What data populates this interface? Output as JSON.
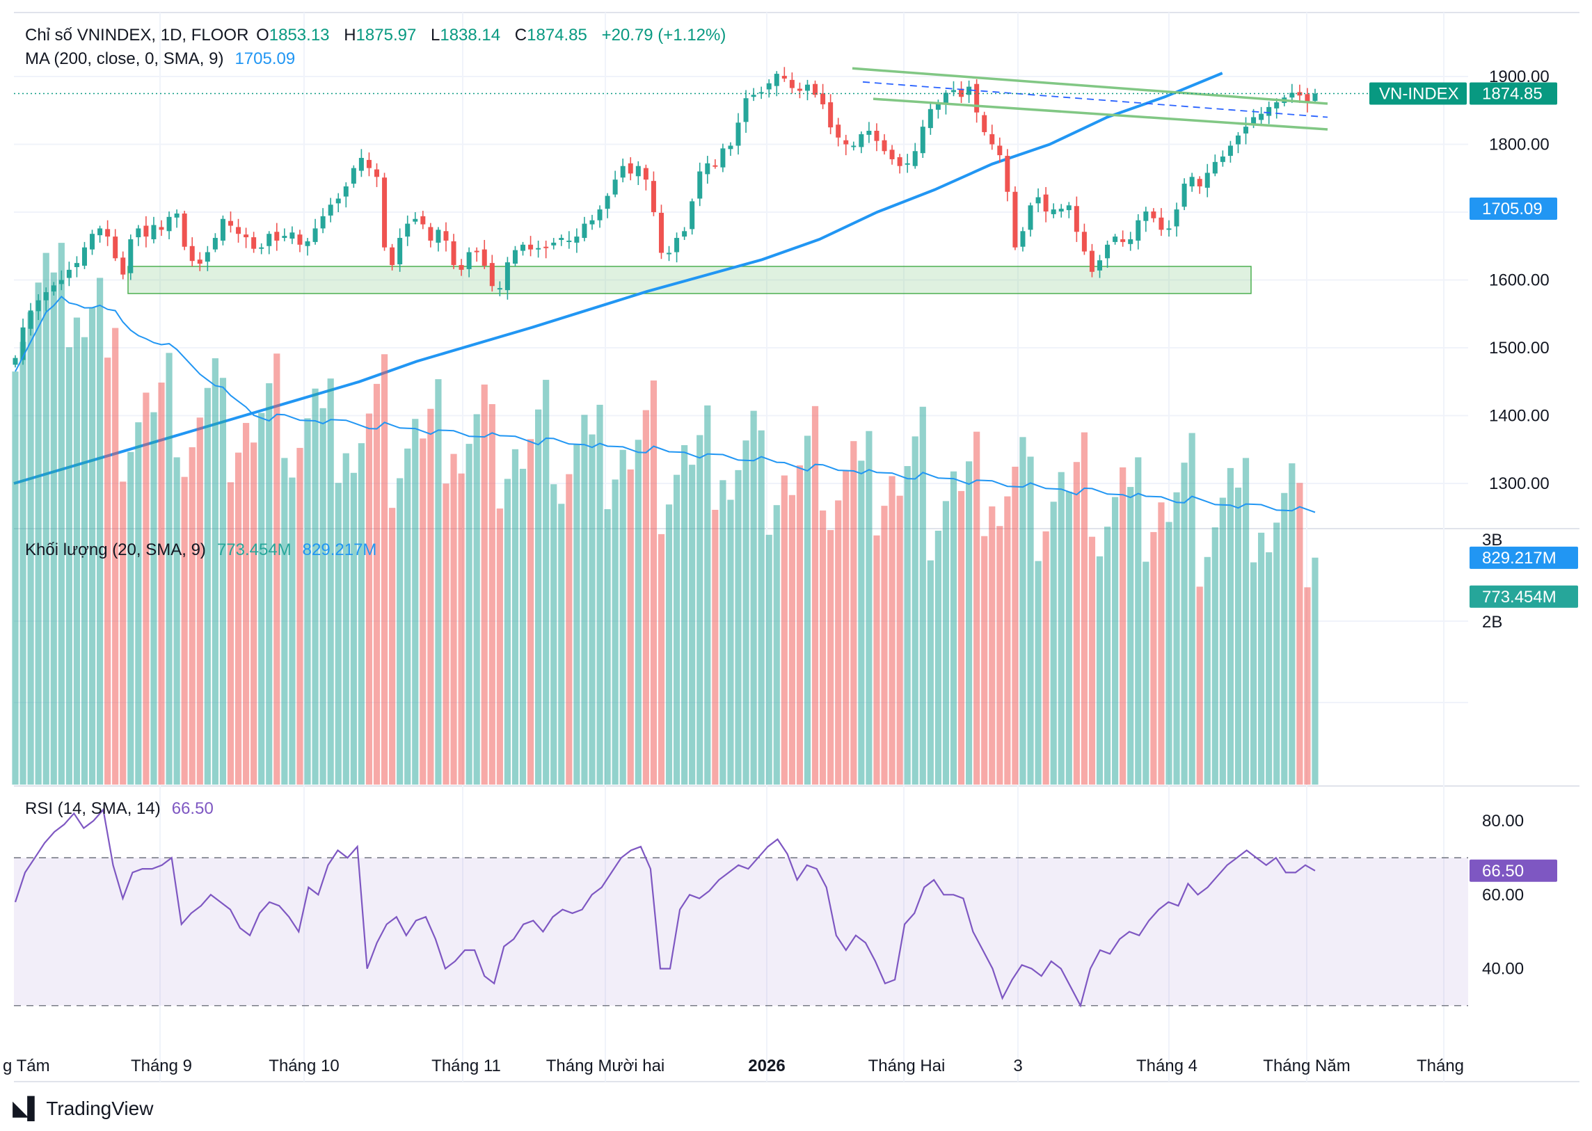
{
  "header": {
    "symbol_title": "Chỉ số VNINDEX, 1D, FLOOR",
    "open_label": "O",
    "open": "1853.13",
    "high_label": "H",
    "high": "1875.97",
    "low_label": "L",
    "low": "1838.14",
    "close_label": "C",
    "close": "1874.85",
    "change": "+20.79 (+1.12%)"
  },
  "ma_legend": {
    "label": "MA (200, close, 0, SMA, 9)",
    "value": "1705.09"
  },
  "volume_legend": {
    "label": "Khối lượng (20, SMA, 9)",
    "value_volume": "773.454M",
    "value_ma": "829.217M"
  },
  "rsi_legend": {
    "label": "RSI (14, SMA, 14)",
    "value": "66.50"
  },
  "badges": {
    "symbol_name": "VN-INDEX",
    "last_price": "1874.85",
    "ma_price": "1705.09",
    "vol_ma": "829.217M",
    "vol_last": "773.454M",
    "rsi": "66.50"
  },
  "brand": "TradingView",
  "colors": {
    "up": "#26a69a",
    "down": "#ef5350",
    "ma": "#2196f3",
    "rsi": "#7e57c2",
    "channel": "#81c784"
  },
  "chart_data": [
    {
      "type": "candlestick",
      "title": "Chỉ số VNINDEX, 1D, FLOOR",
      "x_tick_labels": [
        "g Tám",
        "Tháng 9",
        "Tháng 10",
        "Tháng 11",
        "Tháng Mười hai",
        "2026",
        "Tháng Hai",
        "3",
        "Tháng 4",
        "Tháng Năm",
        "Tháng"
      ],
      "y_tick_labels": [
        "1900.00",
        "1800.00",
        "1700.00",
        "1600.00",
        "1500.00",
        "1400.00",
        "1300.00"
      ],
      "ylim": [
        1250,
        1935
      ],
      "close_series": [
        1485,
        1530,
        1555,
        1570,
        1582,
        1592,
        1600,
        1615,
        1625,
        1648,
        1668,
        1676,
        1664,
        1632,
        1608,
        1660,
        1676,
        1664,
        1681,
        1674,
        1693,
        1698,
        1649,
        1628,
        1624,
        1641,
        1662,
        1690,
        1680,
        1668,
        1663,
        1646,
        1648,
        1668,
        1658,
        1665,
        1670,
        1652,
        1657,
        1676,
        1694,
        1711,
        1720,
        1738,
        1765,
        1780,
        1765,
        1752,
        1648,
        1622,
        1662,
        1683,
        1690,
        1682,
        1658,
        1674,
        1658,
        1622,
        1615,
        1641,
        1642,
        1621,
        1591,
        1588,
        1626,
        1644,
        1652,
        1645,
        1647,
        1648,
        1655,
        1662,
        1658,
        1664,
        1683,
        1688,
        1704,
        1724,
        1748,
        1768,
        1757,
        1768,
        1748,
        1700,
        1640,
        1640,
        1662,
        1672,
        1716,
        1760,
        1772,
        1768,
        1794,
        1798,
        1832,
        1868,
        1873,
        1877,
        1890,
        1904,
        1897,
        1883,
        1879,
        1888,
        1873,
        1859,
        1825,
        1810,
        1800,
        1798,
        1815,
        1820,
        1805,
        1790,
        1778,
        1768,
        1772,
        1790,
        1826,
        1852,
        1860,
        1876,
        1880,
        1870,
        1885,
        1847,
        1818,
        1800,
        1784,
        1730,
        1648,
        1672,
        1710,
        1722,
        1701,
        1704,
        1705,
        1710,
        1671,
        1642,
        1612,
        1629,
        1652,
        1664,
        1656,
        1660,
        1688,
        1701,
        1691,
        1674,
        1676,
        1704,
        1742,
        1752,
        1738,
        1758,
        1774,
        1782,
        1798,
        1813,
        1826,
        1840,
        1845,
        1855,
        1862,
        1869,
        1876,
        1872,
        1861,
        1874.85
      ],
      "ma200_points": [
        [
          0,
          1300
        ],
        [
          200,
          1350
        ],
        [
          400,
          1400
        ],
        [
          600,
          1450
        ],
        [
          700,
          1480
        ],
        [
          900,
          1530
        ],
        [
          1100,
          1583
        ],
        [
          1300,
          1630
        ],
        [
          1400,
          1660
        ],
        [
          1500,
          1700
        ],
        [
          1600,
          1733
        ],
        [
          1700,
          1771
        ],
        [
          1800,
          1800
        ],
        [
          1900,
          1840
        ],
        [
          2000,
          1870
        ],
        [
          2100,
          1905
        ]
      ],
      "ma200_last": 1705.09,
      "support_zone": [
        1580,
        1620
      ],
      "channel_upper": [
        [
          1910,
          1228
        ],
        [
          1880,
          1855
        ]
      ],
      "channel_lower": [
        [
          1880,
          1854
        ],
        [
          1830,
          1825
        ]
      ]
    },
    {
      "type": "bar",
      "title": "Khối lượng (20, SMA, 9)",
      "y_tick_labels": [
        "3B",
        "2B"
      ],
      "ylim": [
        0,
        3000
      ],
      "unit": "M",
      "ma_last": 829.217,
      "last": 773.454
    },
    {
      "type": "line",
      "title": "RSI (14, SMA, 14)",
      "y_tick_labels": [
        "80.00",
        "60.00",
        "40.00"
      ],
      "ylim": [
        20,
        85
      ],
      "bands": [
        30,
        70
      ],
      "last": 66.5,
      "values": [
        58,
        66,
        70,
        74,
        77,
        79,
        82,
        78,
        80,
        83,
        68,
        59,
        66,
        67,
        67,
        68,
        70,
        52,
        55,
        57,
        60,
        58,
        56,
        51,
        49,
        55,
        58,
        57,
        54,
        50,
        62,
        60,
        68,
        72,
        70,
        73,
        40,
        47,
        52,
        54,
        49,
        53,
        54,
        48,
        40,
        42,
        45,
        45,
        38,
        36,
        46,
        48,
        52,
        53,
        50,
        54,
        56,
        55,
        56,
        60,
        62,
        66,
        70,
        72,
        73,
        67,
        40,
        40,
        56,
        60,
        59,
        61,
        64,
        66,
        68,
        67,
        70,
        73,
        75,
        71,
        64,
        68,
        67,
        62,
        49,
        45,
        49,
        47,
        42,
        36,
        37,
        52,
        55,
        62,
        64,
        60,
        60,
        59,
        50,
        45,
        40,
        32,
        37,
        41,
        40,
        38,
        42,
        40,
        35,
        30,
        40,
        45,
        44,
        48,
        50,
        49,
        53,
        56,
        58,
        57,
        63,
        60,
        62,
        65,
        68,
        70,
        72,
        70,
        68,
        70,
        66,
        66,
        68,
        66.5
      ]
    }
  ]
}
